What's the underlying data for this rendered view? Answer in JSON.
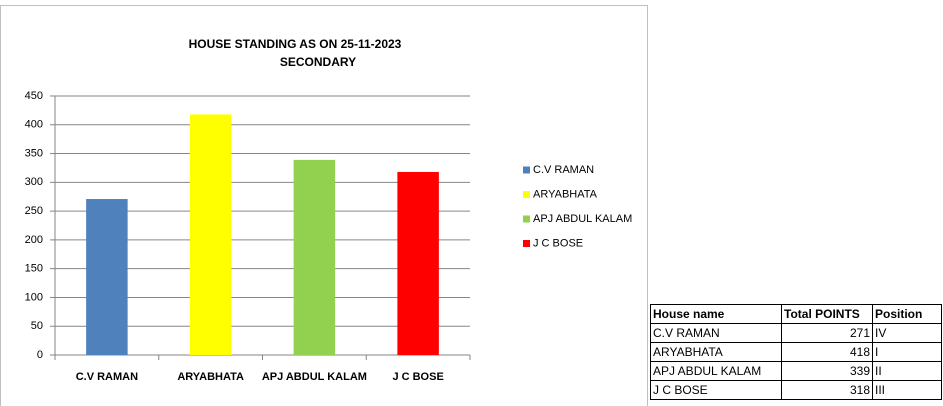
{
  "chart_data": {
    "type": "bar",
    "title": "HOUSE STANDING AS ON 25-11-2023",
    "subtitle": "SECONDARY",
    "categories": [
      "C.V RAMAN",
      "ARYABHATA",
      "APJ ABDUL KALAM",
      "J C BOSE"
    ],
    "values": [
      271,
      418,
      339,
      318
    ],
    "colors": [
      "#4f81bd",
      "#ffff00",
      "#92d050",
      "#ff0000"
    ],
    "ylim": [
      0,
      450
    ],
    "yticks": [
      0,
      50,
      100,
      150,
      200,
      250,
      300,
      350,
      400,
      450
    ],
    "grid": true,
    "legend": "right"
  },
  "table": {
    "header": [
      "House name",
      "Total POINTS",
      "Position"
    ],
    "rows": [
      [
        "C.V RAMAN",
        271,
        "IV"
      ],
      [
        "ARYABHATA",
        418,
        "I"
      ],
      [
        "APJ ABDUL KALAM",
        339,
        "II"
      ],
      [
        "J C BOSE",
        318,
        "III"
      ]
    ]
  }
}
